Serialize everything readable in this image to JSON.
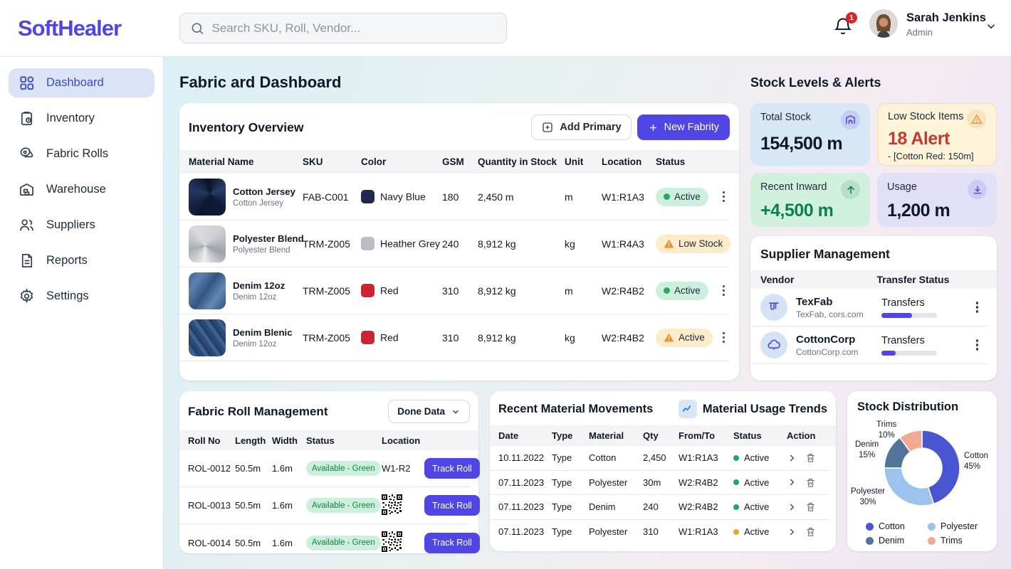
{
  "brand": {
    "logo": "SoftHealer"
  },
  "header": {
    "search_placeholder": "Search SKU, Roll, Vendor...",
    "notification_count": "1",
    "user_name": "Sarah Jenkins",
    "user_role": "Admin"
  },
  "sidebar": {
    "items": [
      {
        "label": "Dashboard"
      },
      {
        "label": "Inventory"
      },
      {
        "label": "Fabric Rolls"
      },
      {
        "label": "Warehouse"
      },
      {
        "label": "Suppliers"
      },
      {
        "label": "Reports"
      },
      {
        "label": "Settings"
      }
    ]
  },
  "page": {
    "title": "Fabric ard Dashboard",
    "right_title": "Stock Levels & Alerts"
  },
  "inventory": {
    "title": "Inventory Overview",
    "add_primary_label": "Add Primary",
    "new_fabric_label": "New Fabrity",
    "columns": [
      "Material Name",
      "SKU",
      "Color",
      "GSM",
      "Quantity in Stock",
      "Unit",
      "Location",
      "Status"
    ],
    "rows": [
      {
        "name": "Cotton Jersey",
        "sub": "Cotton Jersey",
        "sku": "FAB-C001",
        "color": "Navy Blue",
        "color_hex": "#1e2a4d",
        "gsm": "180",
        "qty": "2,450 m",
        "unit": "m",
        "location": "W1:R1A3",
        "status": "Active"
      },
      {
        "name": "Polyester Blend",
        "sub": "Polyester Blend",
        "sku": "TRM-Z005",
        "color": "Heather Grey",
        "color_hex": "#b9bcc2",
        "gsm": "240",
        "qty": "8,912 kg",
        "unit": "kg",
        "location": "W1:R4A3",
        "status": "Low Stock"
      },
      {
        "name": "Denim 12oz",
        "sub": "Denim 12oz",
        "sku": "TRM-Z005",
        "color": "Red",
        "color_hex": "#cf2333",
        "gsm": "310",
        "qty": "8,912 kg",
        "unit": "m",
        "location": "W2:R4B2",
        "status": "Active"
      },
      {
        "name": "Denim Blenic",
        "sub": "Denim 12oz",
        "sku": "TRM-Z005",
        "color": "Red",
        "color_hex": "#cf2333",
        "gsm": "310",
        "qty": "8,912 kg",
        "unit": "kg",
        "location": "W2:R4B2",
        "status": "Active"
      }
    ]
  },
  "stats": {
    "total": {
      "label": "Total Stock",
      "value": "154,500 m"
    },
    "low": {
      "label": "Low Stock Items",
      "value": "18 Alert",
      "sub": "- [Cotton Red: 150m]"
    },
    "inward": {
      "label": "Recent Inward",
      "value": "+4,500 m"
    },
    "usage": {
      "label": "Usage",
      "value": "1,200 m"
    }
  },
  "suppliers": {
    "title": "Supplier Management",
    "col_vendor": "Vendor",
    "col_status": "Transfer Status",
    "rows": [
      {
        "name": "TexFab",
        "sub": "TexFab, cors.com",
        "transfer_label": "Transfers",
        "progress": "55%"
      },
      {
        "name": "CottonCorp",
        "sub": "CottonCorp.com",
        "transfer_label": "Transfers",
        "progress": "25%"
      }
    ]
  },
  "rolls": {
    "title": "Fabric Roll Management",
    "filter_label": "Done Data",
    "columns": [
      "Roll No",
      "Length",
      "Width",
      "Status",
      "Location"
    ],
    "track_label": "Track Roll",
    "rows": [
      {
        "no": "ROL-0012",
        "length": "50.5m",
        "width": "1.6m",
        "status": "Available - Green",
        "location": "W1-R2",
        "qr": false
      },
      {
        "no": "ROL-0013",
        "length": "50.5m",
        "width": "1.6m",
        "status": "Available - Green",
        "location": "",
        "qr": true
      },
      {
        "no": "ROL-0014",
        "length": "50.5m",
        "width": "1.6m",
        "status": "Available - Green",
        "location": "",
        "qr": true
      }
    ]
  },
  "movements": {
    "title": "Recent Material Movements",
    "trends_title": "Material Usage Trends",
    "columns": [
      "Date",
      "Type",
      "Material",
      "Qty",
      "From/To",
      "Status",
      "Action"
    ],
    "rows": [
      {
        "date": "10.11.2022",
        "type": "Type",
        "material": "Cotton",
        "qty": "2,450",
        "fromto": "W1:R1A3",
        "status": "Active",
        "warn": false
      },
      {
        "date": "07.11.2023",
        "type": "Type",
        "material": "Polyester",
        "qty": "30m",
        "fromto": "W2:R4B2",
        "status": "Active",
        "warn": false
      },
      {
        "date": "07.11.2023",
        "type": "Type",
        "material": "Denim",
        "qty": "240",
        "fromto": "W2:R4B2",
        "status": "Active",
        "warn": false
      },
      {
        "date": "07.11.2023",
        "type": "Type",
        "material": "Polyester",
        "qty": "310",
        "fromto": "W1:R1A3",
        "status": "Active",
        "warn": true
      }
    ]
  },
  "chart_data": {
    "type": "pie",
    "title": "Stock Distribution",
    "labels": [
      "Cotton",
      "Polyester",
      "Denim",
      "Trims"
    ],
    "values": [
      45,
      30,
      15,
      10
    ],
    "colors": [
      "#4a55d2",
      "#9cc3ed",
      "#52749b",
      "#f4a890"
    ],
    "legend_position": "bottom",
    "donut": true
  }
}
